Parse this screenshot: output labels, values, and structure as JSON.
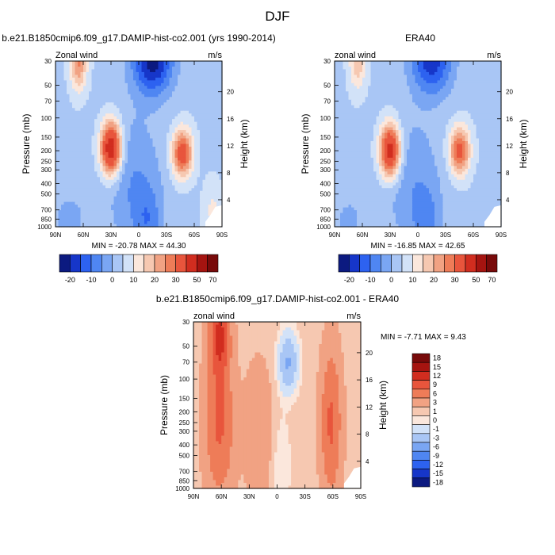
{
  "figure": {
    "title": "DJF"
  },
  "colors": {
    "cmap1": [
      "#0c1a80",
      "#1636c9",
      "#2d62f0",
      "#4f86f2",
      "#7aa6f3",
      "#a9c6f5",
      "#d2e2f8",
      "#fbe7dc",
      "#f6c8b1",
      "#f1a283",
      "#ee7c58",
      "#e8553c",
      "#d12d1f",
      "#a51410",
      "#780a0a"
    ],
    "cmap2": [
      "#0c1a80",
      "#1636c9",
      "#2d62f0",
      "#4f86f2",
      "#7aa6f3",
      "#a9c6f5",
      "#d2e2f8",
      "#fbe7dc",
      "#f6c8b1",
      "#f1a283",
      "#ee7c58",
      "#e8553c",
      "#d12d1f",
      "#a51410",
      "#780a0a"
    ]
  },
  "chart_data": [
    {
      "type": "heatmap",
      "title": "b.e21.B1850cmip6.f09_g17.DAMIP-hist-co2.001 (yrs 1990-2014)",
      "left_label": "Zonal wind",
      "right_label": "m/s",
      "ylabel": "Pressure (mb)",
      "y2label": "Height (km)",
      "x_ticks": [
        "90N",
        "60N",
        "30N",
        "0",
        "30S",
        "60S",
        "90S"
      ],
      "y_ticks": [
        "30",
        "50",
        "70",
        "100",
        "150",
        "200",
        "250",
        "300",
        "400",
        "500",
        "700",
        "850",
        "1000"
      ],
      "y2_ticks": [
        "20",
        "16",
        "12",
        "8",
        "4"
      ],
      "stats": "MIN = -20.78  MAX =  44.30",
      "colorbar_levels": [
        "-20",
        "-10",
        "0",
        "10",
        "20",
        "30",
        "50",
        "70"
      ],
      "x_range": [
        90,
        -90
      ],
      "y_range": [
        30,
        1000
      ],
      "scale_y": "log",
      "value_range": [
        -20.78,
        44.3
      ]
    },
    {
      "type": "heatmap",
      "title": "ERA40",
      "left_label": "zonal wind",
      "right_label": "m/s",
      "ylabel": "Pressure (mb)",
      "y2label": "Height (km)",
      "x_ticks": [
        "90N",
        "60N",
        "30N",
        "0",
        "30S",
        "60S",
        "90S"
      ],
      "y_ticks": [
        "30",
        "50",
        "70",
        "100",
        "150",
        "200",
        "250",
        "300",
        "400",
        "500",
        "700",
        "850",
        "1000"
      ],
      "y2_ticks": [
        "20",
        "16",
        "12",
        "8",
        "4"
      ],
      "stats": "MIN = -16.85  MAX =  42.65",
      "colorbar_levels": [
        "-20",
        "-10",
        "0",
        "10",
        "20",
        "30",
        "50",
        "70"
      ],
      "x_range": [
        90,
        -90
      ],
      "y_range": [
        30,
        1000
      ],
      "scale_y": "log",
      "value_range": [
        -16.85,
        42.65
      ]
    },
    {
      "type": "heatmap",
      "title": "b.e21.B1850cmip6.f09_g17.DAMIP-hist-co2.001 - ERA40",
      "left_label": "zonal wind",
      "right_label": "m/s",
      "ylabel": "Pressure (mb)",
      "y2label": "Height (km)",
      "x_ticks": [
        "90N",
        "60N",
        "30N",
        "0",
        "30S",
        "60S",
        "90S"
      ],
      "y_ticks": [
        "30",
        "50",
        "70",
        "100",
        "150",
        "200",
        "250",
        "300",
        "400",
        "500",
        "700",
        "850",
        "1000"
      ],
      "y2_ticks": [
        "20",
        "16",
        "12",
        "8",
        "4"
      ],
      "stats": "MIN =  -7.71  MAX =   9.43",
      "colorbar_levels": [
        "18",
        "15",
        "12",
        "9",
        "6",
        "3",
        "1",
        "0",
        "-1",
        "-3",
        "-6",
        "-9",
        "-12",
        "-15",
        "-18"
      ],
      "x_range": [
        90,
        -90
      ],
      "y_range": [
        30,
        1000
      ],
      "scale_y": "log",
      "value_range": [
        -7.71,
        9.43
      ]
    }
  ]
}
